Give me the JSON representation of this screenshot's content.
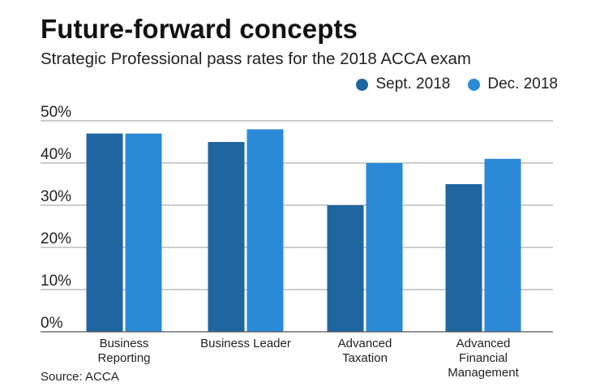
{
  "title": "Future-forward concepts",
  "subtitle": "Strategic Professional pass rates for the 2018 ACCA exam",
  "source": "Source: ACCA",
  "colors": {
    "sept": "#1f66a0",
    "dec": "#2a8ad8",
    "grid": "#9a9a9a",
    "axis": "#555555"
  },
  "chart_data": {
    "type": "bar",
    "title": "Future-forward concepts",
    "subtitle": "Strategic Professional pass rates for the 2018 ACCA exam",
    "categories": [
      [
        "Business",
        "Reporting"
      ],
      [
        "Business Leader"
      ],
      [
        "Advanced",
        "Taxation"
      ],
      [
        "Advanced",
        "Financial",
        "Management"
      ]
    ],
    "series": [
      {
        "name": "Sept. 2018",
        "color": "#1f66a0",
        "values": [
          47,
          45,
          30,
          35
        ]
      },
      {
        "name": "Dec. 2018",
        "color": "#2a8ad8",
        "values": [
          47,
          48,
          40,
          41
        ]
      }
    ],
    "yticks": [
      "0%",
      "10%",
      "20%",
      "30%",
      "40%",
      "50%"
    ],
    "ylim": [
      0,
      50
    ],
    "grid": true,
    "legend": "top-right"
  }
}
